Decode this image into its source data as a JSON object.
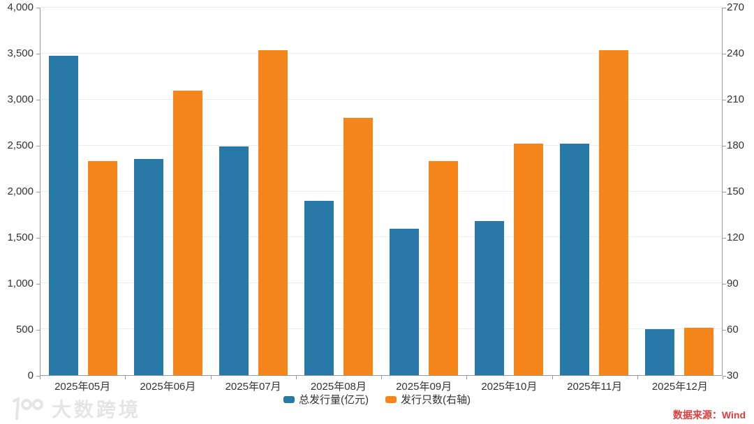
{
  "watermark": "大数跨境",
  "source_note": "数据来源：Wind",
  "colors": {
    "bar_blue": "#2878a8",
    "bar_orange": "#f5861c",
    "axis_line": "#999999",
    "grid_line": "#ececec",
    "label_text": "#333333",
    "source_text": "#e03c3c",
    "watermark_text": "#e5e5e5"
  },
  "legend": [
    {
      "label": "总发行量(亿元)",
      "color": "#2878a8"
    },
    {
      "label": "发行只数(右轴)",
      "color": "#f5861c"
    }
  ],
  "chart_data": {
    "type": "bar",
    "categories": [
      "2025年05月",
      "2025年06月",
      "2025年07月",
      "2025年08月",
      "2025年09月",
      "2025年10月",
      "2025年11月",
      "2025年12月"
    ],
    "series": [
      {
        "name": "总发行量(亿元)",
        "axis": "left",
        "color": "#2878a8",
        "values": [
          3480,
          2350,
          2490,
          1895,
          1595,
          1675,
          2520,
          500
        ]
      },
      {
        "name": "发行只数(右轴)",
        "axis": "right",
        "color": "#f5861c",
        "values": [
          170,
          216,
          242,
          198,
          170,
          181,
          242,
          61
        ]
      }
    ],
    "left_axis": {
      "min": 0,
      "max": 4000,
      "step": 500,
      "tick_labels": [
        "0",
        "500",
        "1,000",
        "1,500",
        "2,000",
        "2,500",
        "3,000",
        "3,500",
        "4,000"
      ]
    },
    "right_axis": {
      "min": 30,
      "max": 270,
      "step": 30,
      "tick_labels": [
        "30",
        "60",
        "90",
        "120",
        "150",
        "180",
        "210",
        "240",
        "270"
      ]
    },
    "grid": true,
    "legend_position": "bottom"
  }
}
